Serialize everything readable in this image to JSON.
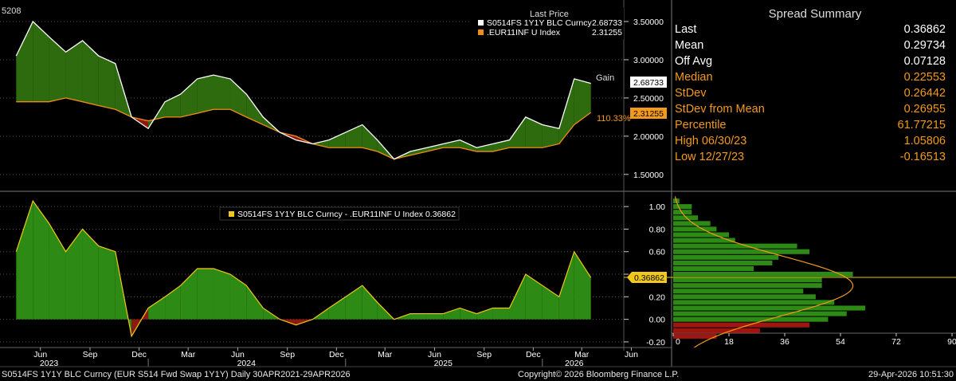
{
  "top_panel": {
    "corner_label": "5208",
    "legend_title": "Last Price",
    "legend": [
      {
        "name": "S0514FS 1Y1Y BLC Curncy",
        "value": "2.68733",
        "color": "#ffffff"
      },
      {
        "name": ".EUR11INF U Index",
        "value": "2.31255",
        "color": "#f08c1a"
      }
    ],
    "gain_label": "Gain",
    "pct_label": "110.33%",
    "tags": [
      {
        "value": "2.68733"
      },
      {
        "value": "2.31255"
      }
    ],
    "ticks": [
      "3.50000",
      "3.00000",
      "2.50000",
      "2.00000",
      "1.50000"
    ]
  },
  "bottom_panel": {
    "legend": "S0514FS 1Y1Y BLC Curncy - .EUR11INF U Index 0.36862",
    "tag": "0.36862",
    "ticks": [
      "1.00",
      "0.80",
      "0.60",
      "0.40",
      "0.20",
      "0.00",
      "-0.20"
    ]
  },
  "histogram": {
    "ticks": [
      "0",
      "18",
      "36",
      "54",
      "72",
      "90"
    ]
  },
  "spread_summary": {
    "title": "Spread Summary",
    "rows": [
      {
        "label": "Last",
        "value": "0.36862",
        "color": "white"
      },
      {
        "label": "Mean",
        "value": "0.29734",
        "color": "white"
      },
      {
        "label": "Off Avg",
        "value": "0.07128",
        "color": "white"
      },
      {
        "label": "Median",
        "value": "0.22553",
        "color": "orange"
      },
      {
        "label": "StDev",
        "value": "0.26442",
        "color": "orange"
      },
      {
        "label": "StDev from Mean",
        "value": "0.26955",
        "color": "orange"
      },
      {
        "label": "Percentile",
        "value": "61.77215",
        "color": "orange"
      },
      {
        "label": "High 06/30/23",
        "value": "1.05806",
        "color": "orange"
      },
      {
        "label": "Low 12/27/23",
        "value": "-0.16513",
        "color": "orange"
      }
    ]
  },
  "x_axis": {
    "months": [
      "Jun",
      "Sep",
      "Dec",
      "Mar",
      "Jun",
      "Sep",
      "Dec",
      "Mar",
      "Jun",
      "Sep",
      "Dec",
      "Mar",
      "Jun"
    ],
    "years": [
      "2023",
      "2024",
      "2025",
      "2026"
    ]
  },
  "footer": {
    "left": "S0514FS 1Y1Y BLC Curncy (EUR S514 Fwd Swap 1Y1Y) Daily 30APR2021-29APR2026",
    "center": "Copyright© 2026 Bloomberg Finance L.P.",
    "right": "29-Apr-2026 10:51:30"
  },
  "chart_data": [
    {
      "type": "line",
      "title": "",
      "series": [
        {
          "name": "S0514FS 1Y1Y BLC Curncy",
          "color": "#ffffff",
          "x": [
            "2023-05-01",
            "2023-06-01",
            "2023-07-01",
            "2023-08-01",
            "2023-09-01",
            "2023-10-01",
            "2023-11-01",
            "2023-12-01",
            "2024-01-01",
            "2024-02-01",
            "2024-03-01",
            "2024-04-01",
            "2024-05-01",
            "2024-06-01",
            "2024-07-01",
            "2024-08-01",
            "2024-09-01",
            "2024-10-01",
            "2024-11-01",
            "2024-12-01",
            "2025-01-01",
            "2025-02-01",
            "2025-03-01",
            "2025-04-01",
            "2025-05-01",
            "2025-06-01",
            "2025-07-01",
            "2025-08-01",
            "2025-09-01",
            "2025-10-01",
            "2025-11-01",
            "2025-12-01",
            "2026-01-01",
            "2026-02-01",
            "2026-03-01",
            "2026-04-01"
          ],
          "values": [
            3.05,
            3.5,
            3.3,
            3.1,
            3.25,
            3.05,
            2.95,
            2.25,
            2.1,
            2.45,
            2.55,
            2.75,
            2.8,
            2.75,
            2.55,
            2.25,
            2.05,
            1.95,
            1.9,
            1.95,
            2.05,
            2.15,
            1.95,
            1.7,
            1.8,
            1.85,
            1.9,
            1.95,
            1.85,
            1.9,
            1.95,
            2.25,
            2.15,
            2.1,
            2.75,
            2.69
          ]
        },
        {
          "name": ".EUR11INF U Index",
          "color": "#f08c1a",
          "x": [
            "2023-05-01",
            "2023-06-01",
            "2023-07-01",
            "2023-08-01",
            "2023-09-01",
            "2023-10-01",
            "2023-11-01",
            "2023-12-01",
            "2024-01-01",
            "2024-02-01",
            "2024-03-01",
            "2024-04-01",
            "2024-05-01",
            "2024-06-01",
            "2024-07-01",
            "2024-08-01",
            "2024-09-01",
            "2024-10-01",
            "2024-11-01",
            "2024-12-01",
            "2025-01-01",
            "2025-02-01",
            "2025-03-01",
            "2025-04-01",
            "2025-05-01",
            "2025-06-01",
            "2025-07-01",
            "2025-08-01",
            "2025-09-01",
            "2025-10-01",
            "2025-11-01",
            "2025-12-01",
            "2026-01-01",
            "2026-02-01",
            "2026-03-01",
            "2026-04-01"
          ],
          "values": [
            2.45,
            2.45,
            2.45,
            2.5,
            2.45,
            2.4,
            2.35,
            2.25,
            2.2,
            2.25,
            2.25,
            2.3,
            2.35,
            2.35,
            2.25,
            2.15,
            2.05,
            2.0,
            1.9,
            1.85,
            1.85,
            1.85,
            1.8,
            1.7,
            1.75,
            1.8,
            1.85,
            1.85,
            1.8,
            1.8,
            1.85,
            1.85,
            1.85,
            1.9,
            2.15,
            2.31
          ]
        }
      ],
      "ylim": [
        1.3,
        3.75
      ],
      "legend": "top-right"
    },
    {
      "type": "area",
      "title": "",
      "series": [
        {
          "name": "S0514FS 1Y1Y BLC Curncy - .EUR11INF U Index",
          "color": "#2d8a14",
          "x": [
            "2023-05-01",
            "2023-06-01",
            "2023-07-01",
            "2023-08-01",
            "2023-09-01",
            "2023-10-01",
            "2023-11-01",
            "2023-12-01",
            "2024-01-01",
            "2024-02-01",
            "2024-03-01",
            "2024-04-01",
            "2024-05-01",
            "2024-06-01",
            "2024-07-01",
            "2024-08-01",
            "2024-09-01",
            "2024-10-01",
            "2024-11-01",
            "2024-12-01",
            "2025-01-01",
            "2025-02-01",
            "2025-03-01",
            "2025-04-01",
            "2025-05-01",
            "2025-06-01",
            "2025-07-01",
            "2025-08-01",
            "2025-09-01",
            "2025-10-01",
            "2025-11-01",
            "2025-12-01",
            "2026-01-01",
            "2026-02-01",
            "2026-03-01",
            "2026-04-01"
          ],
          "values": [
            0.6,
            1.05,
            0.85,
            0.6,
            0.8,
            0.65,
            0.6,
            -0.15,
            0.1,
            0.2,
            0.3,
            0.45,
            0.45,
            0.4,
            0.3,
            0.1,
            0.0,
            -0.05,
            0.0,
            0.1,
            0.2,
            0.3,
            0.15,
            0.0,
            0.05,
            0.05,
            0.05,
            0.1,
            0.05,
            0.1,
            0.1,
            0.4,
            0.3,
            0.2,
            0.6,
            0.37
          ]
        }
      ],
      "ylim": [
        -0.25,
        1.1
      ]
    },
    {
      "type": "bar",
      "title": "",
      "orientation": "horizontal",
      "categories": [
        1.05,
        1.0,
        0.95,
        0.9,
        0.85,
        0.8,
        0.75,
        0.7,
        0.65,
        0.6,
        0.55,
        0.5,
        0.45,
        0.4,
        0.35,
        0.3,
        0.25,
        0.2,
        0.15,
        0.1,
        0.05,
        0.0,
        -0.05,
        -0.1,
        -0.15
      ],
      "values": [
        2,
        6,
        6,
        8,
        12,
        14,
        18,
        20,
        40,
        44,
        34,
        32,
        26,
        58,
        48,
        48,
        42,
        46,
        52,
        62,
        56,
        50,
        44,
        28,
        14
      ],
      "xlim": [
        0,
        90
      ]
    }
  ]
}
